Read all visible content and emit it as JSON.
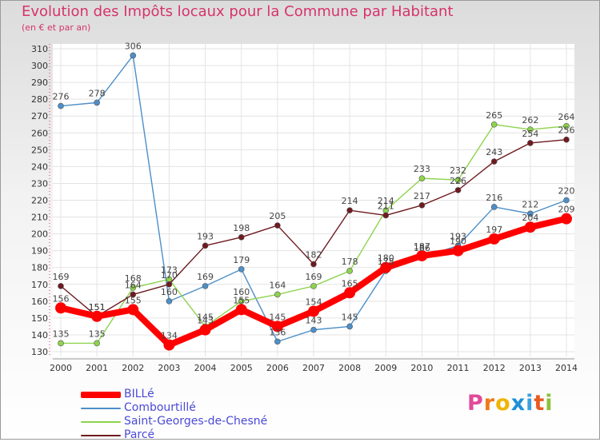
{
  "title": "Evolution des Impôts locaux pour la Commune par Habitant",
  "subtitle": "(en € et par an)",
  "logo_text": "Proxiti",
  "chart_data": {
    "type": "line",
    "x": [
      "2000",
      "2001",
      "2002",
      "2003",
      "2004",
      "2005",
      "2006",
      "2007",
      "2008",
      "2009",
      "2010",
      "2011",
      "2012",
      "2013",
      "2014"
    ],
    "ylim": [
      130,
      310
    ],
    "yticks": [
      130,
      140,
      150,
      160,
      170,
      180,
      190,
      200,
      210,
      220,
      230,
      240,
      250,
      260,
      270,
      280,
      290,
      300,
      310
    ],
    "grid": true,
    "legend_position": "bottom-left",
    "series": [
      {
        "name": "BILLé",
        "color": "#ff0000",
        "values": [
          156,
          151,
          155,
          134,
          143,
          155,
          145,
          154,
          165,
          180,
          187,
          190,
          197,
          204,
          209
        ]
      },
      {
        "name": "Combourtillé",
        "color": "#4d8fc8",
        "values": [
          276,
          278,
          306,
          160,
          169,
          179,
          136,
          143,
          145,
          178,
          186,
          193,
          216,
          212,
          220
        ]
      },
      {
        "name": "Saint-Georges-de-Chesné",
        "color": "#8ed34e",
        "values": [
          135,
          135,
          168,
          173,
          145,
          160,
          164,
          169,
          178,
          214,
          233,
          232,
          265,
          262,
          264
        ]
      },
      {
        "name": "Parcé",
        "color": "#6e1a20",
        "values": [
          169,
          151,
          164,
          170,
          193,
          198,
          205,
          182,
          214,
          211,
          217,
          226,
          243,
          254,
          256
        ]
      }
    ]
  }
}
